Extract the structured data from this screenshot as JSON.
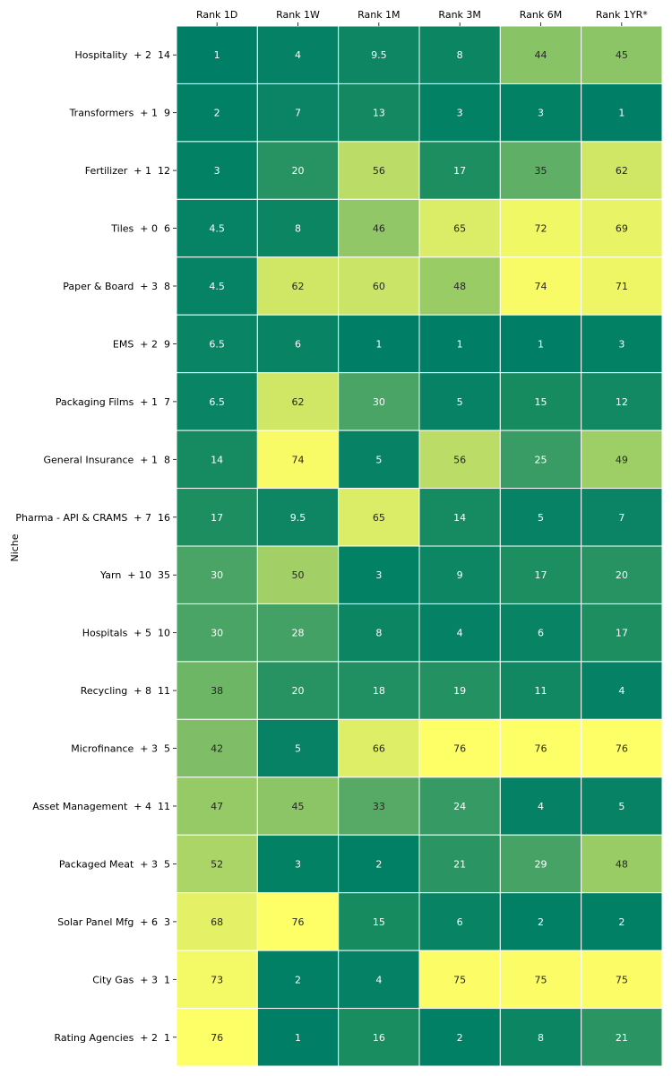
{
  "chart_data": {
    "type": "heatmap",
    "ylabel": "Niche",
    "columns": [
      "Rank 1D",
      "Rank 1W",
      "Rank 1M",
      "Rank 3M",
      "Rank 6M",
      "Rank 1YR*"
    ],
    "rows": [
      "Hospitality  + 2  14",
      "Transformers  + 1  9",
      "Fertilizer  + 1  12",
      "Tiles  + 0  6",
      "Paper & Board  + 3  8",
      "EMS  + 2  9",
      "Packaging Films  + 1  7",
      "General Insurance  + 1  8",
      "Pharma - API & CRAMS  + 7  16",
      "Yarn  + 10  35",
      "Hospitals  + 5  10",
      "Recycling  + 8  11",
      "Microfinance  + 3  5",
      "Asset Management  + 4  11",
      "Packaged Meat  + 3  5",
      "Solar Panel Mfg  + 6  3",
      "City Gas  + 3  1",
      "Rating Agencies  + 2  1"
    ],
    "values": [
      [
        1,
        4,
        9.5,
        8,
        44,
        45
      ],
      [
        2,
        7,
        13,
        3,
        3,
        1
      ],
      [
        3,
        20,
        56,
        17,
        35,
        62
      ],
      [
        4.5,
        8,
        46,
        65,
        72,
        69
      ],
      [
        4.5,
        62,
        60,
        48,
        74,
        71
      ],
      [
        6.5,
        6,
        1,
        1,
        1,
        3
      ],
      [
        6.5,
        62,
        30,
        5,
        15,
        12
      ],
      [
        14,
        74,
        5,
        56,
        25,
        49
      ],
      [
        17,
        9.5,
        65,
        14,
        5,
        7
      ],
      [
        30,
        50,
        3,
        9,
        17,
        20
      ],
      [
        30,
        28,
        8,
        4,
        6,
        17
      ],
      [
        38,
        20,
        18,
        19,
        11,
        4
      ],
      [
        42,
        5,
        66,
        76,
        76,
        76
      ],
      [
        47,
        45,
        33,
        24,
        4,
        5
      ],
      [
        52,
        3,
        2,
        21,
        29,
        48
      ],
      [
        68,
        76,
        15,
        6,
        2,
        2
      ],
      [
        73,
        2,
        4,
        75,
        75,
        75
      ],
      [
        76,
        1,
        16,
        2,
        8,
        21
      ]
    ],
    "value_range": [
      1,
      76
    ],
    "colormap": [
      "#007f66",
      "#fefe66"
    ],
    "grid_color": "#ffffff"
  }
}
